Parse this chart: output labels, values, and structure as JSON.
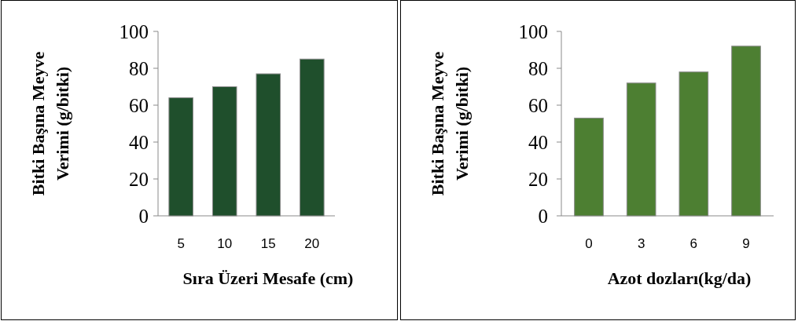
{
  "chart_data": [
    {
      "type": "bar",
      "ylabel": "Bitki Başına Meyve Verimi (g/bitki)",
      "xlabel": "Sıra Üzeri Mesafe (cm)",
      "categories": [
        "5",
        "10",
        "15",
        "20"
      ],
      "values": [
        64,
        70,
        77,
        85
      ],
      "color": "#1f4f2c",
      "ylim": [
        0,
        100
      ],
      "yticks": [
        0,
        20,
        40,
        60,
        80,
        100
      ]
    },
    {
      "type": "bar",
      "ylabel": "Bitki Başına Meyve Verimi (g/bitki)",
      "xlabel": "Azot dozları(kg/da)",
      "categories": [
        "0",
        "3",
        "6",
        "9"
      ],
      "values": [
        53,
        72,
        78,
        92
      ],
      "color": "#4d7f32",
      "ylim": [
        0,
        100
      ],
      "yticks": [
        0,
        20,
        40,
        60,
        80,
        100
      ]
    }
  ]
}
